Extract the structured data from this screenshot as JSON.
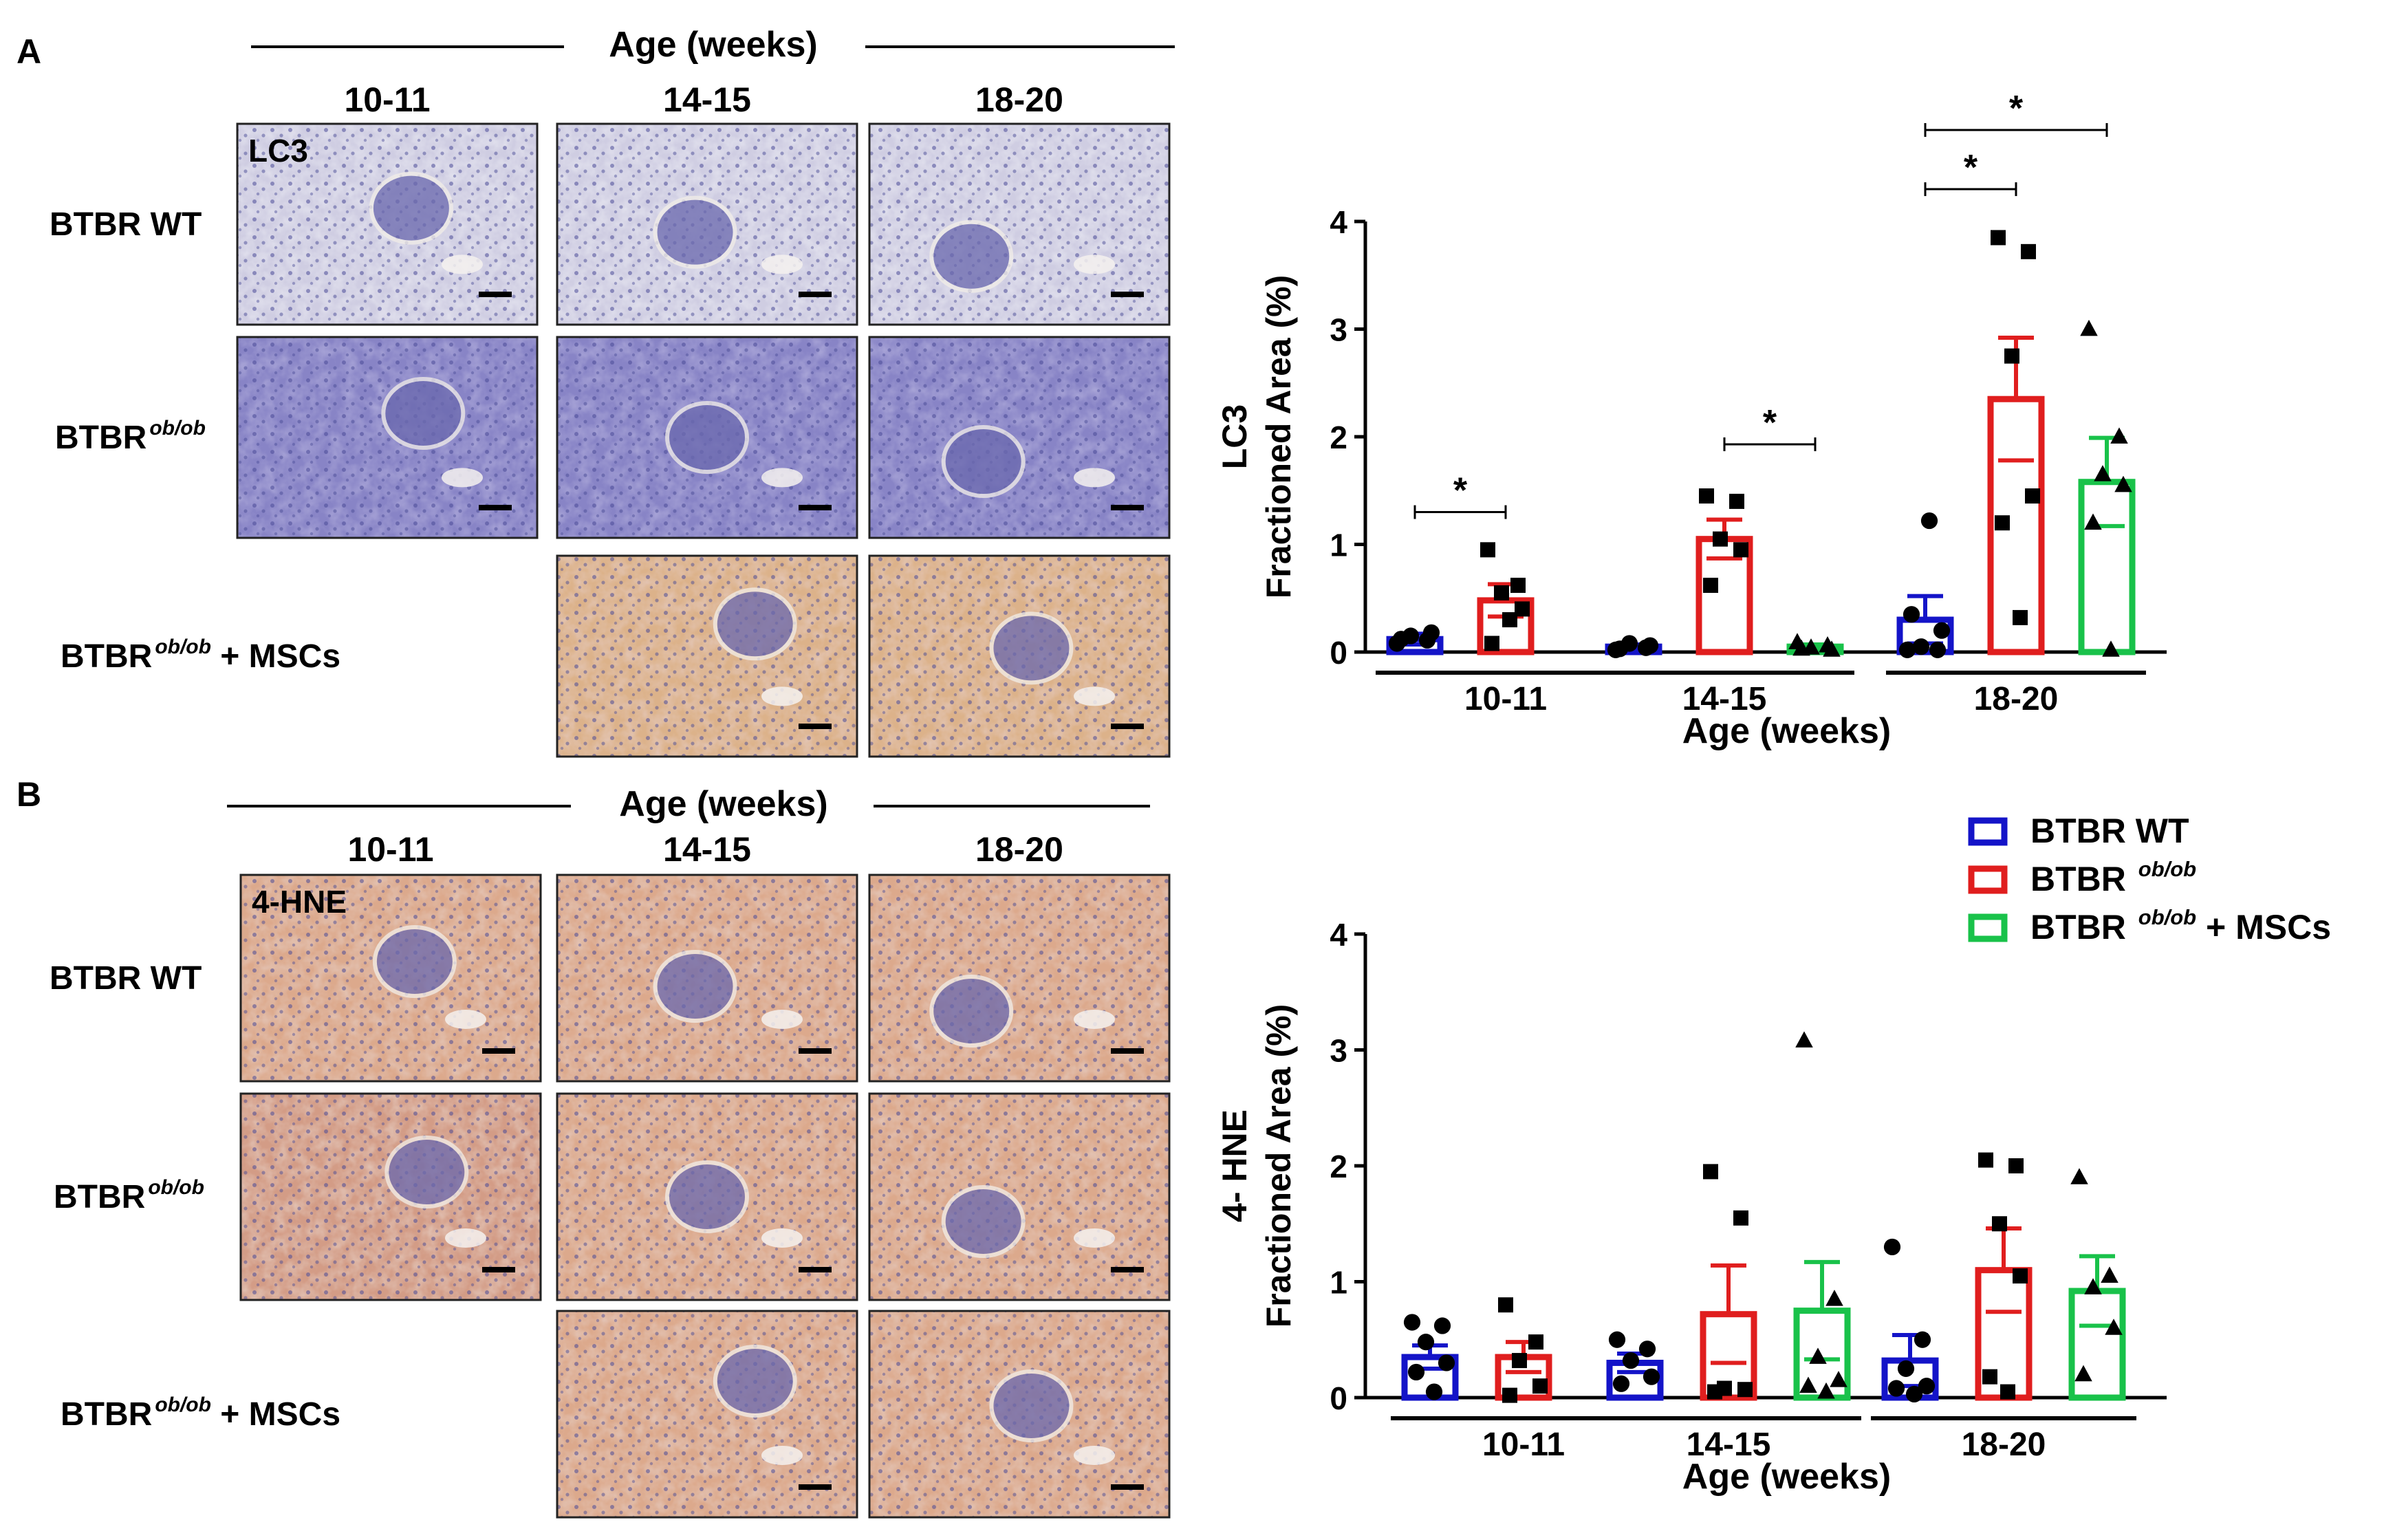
{
  "figure": {
    "panel_A": {
      "letter": "A",
      "header_title": "Age (weeks)",
      "age_groups": [
        "10-11",
        "14-15",
        "18-20"
      ],
      "stain_label": "LC3",
      "row_labels": [
        {
          "base": "BTBR WT",
          "sup": "",
          "suffix": ""
        },
        {
          "base": "BTBR",
          "sup": "ob/ob",
          "suffix": ""
        },
        {
          "base": "BTBR",
          "sup": "ob/ob",
          "suffix": " + MSCs"
        }
      ],
      "tiles": [
        [
          "lc3-wt-10",
          "lc3-wt-14",
          "lc3-wt-18"
        ],
        [
          "lc3-ob-10",
          "lc3-ob-14",
          "lc3-ob-18"
        ],
        [
          null,
          "lc3-msc-14",
          "lc3-msc-18"
        ]
      ]
    },
    "panel_B": {
      "letter": "B",
      "header_title": "Age (weeks)",
      "age_groups": [
        "10-11",
        "14-15",
        "18-20"
      ],
      "stain_label": "4-HNE",
      "row_labels": [
        {
          "base": "BTBR WT",
          "sup": "",
          "suffix": ""
        },
        {
          "base": "BTBR",
          "sup": "ob/ob",
          "suffix": ""
        },
        {
          "base": "BTBR",
          "sup": "ob/ob",
          "suffix": " + MSCs"
        }
      ],
      "tiles": [
        [
          "hne-wt-10",
          "hne-wt-14",
          "hne-wt-18"
        ],
        [
          "hne-ob-10",
          "hne-ob-14",
          "hne-ob-18"
        ],
        [
          null,
          "hne-msc-14",
          "hne-msc-18"
        ]
      ]
    },
    "legend": [
      {
        "base": "BTBR WT",
        "sup": "",
        "suffix": "",
        "color": "#1414c8"
      },
      {
        "base": "BTBR ",
        "sup": "ob/ob",
        "suffix": "",
        "color": "#e01e1e"
      },
      {
        "base": "BTBR ",
        "sup": "ob/ob",
        "suffix": " + MSCs",
        "color": "#19c24a"
      }
    ],
    "stain_colors": {
      "wt_pale": "#cbc9dd",
      "ob_blue": "#8a86c4",
      "msc_tan": "#d7ae86",
      "hne_peach": "#d9a88c",
      "nuclei": "#4a4b96"
    }
  },
  "chart_data": [
    {
      "type": "bar",
      "title": "",
      "ylabel_line1": "LC3",
      "ylabel_line2": "Fractioned Area (%)",
      "xlabel": "Age (weeks)",
      "ylim": [
        0,
        4
      ],
      "yticks": [
        "0",
        "1",
        "2",
        "3",
        "4"
      ],
      "categories": [
        "10-11",
        "14-15",
        "18-20"
      ],
      "series": [
        {
          "name": "BTBR WT",
          "color": "#1414c8",
          "marker": "circle",
          "values": [
            0.12,
            0.05,
            0.3
          ],
          "sem": [
            0.05,
            0.02,
            0.22
          ],
          "points": [
            [
              0.08,
              0.11,
              0.15,
              0.18,
              0.12
            ],
            [
              0.02,
              0.04,
              0.08,
              0.06,
              0.03
            ],
            [
              0.02,
              0.02,
              0.05,
              0.2,
              0.35,
              1.22
            ]
          ]
        },
        {
          "name": "BTBR ob/ob",
          "color": "#e01e1e",
          "marker": "square",
          "values": [
            0.48,
            1.05,
            2.35
          ],
          "sem": [
            0.15,
            0.18,
            0.57
          ],
          "points": [
            [
              0.95,
              0.62,
              0.55,
              0.4,
              0.08,
              0.3
            ],
            [
              1.45,
              1.4,
              1.05,
              0.95,
              0.62
            ],
            [
              3.85,
              3.72,
              2.75,
              1.45,
              1.2,
              0.32
            ]
          ]
        },
        {
          "name": "BTBR ob/ob + MSCs",
          "color": "#19c24a",
          "marker": "triangle",
          "values": [
            null,
            0.05,
            1.58
          ],
          "sem": [
            null,
            0.02,
            0.41
          ],
          "points": [
            [],
            [
              0.09,
              0.06,
              0.04,
              0.02,
              0.03
            ],
            [
              3.0,
              2.0,
              1.65,
              1.55,
              1.2,
              0.02
            ]
          ]
        }
      ],
      "significance": [
        {
          "label": "*",
          "group": 0,
          "from": 0,
          "to": 1,
          "y": 1.3
        },
        {
          "label": "*",
          "group": 1,
          "from": 1,
          "to": 2,
          "y": 1.93
        },
        {
          "label": "*",
          "group": 2,
          "from": 0,
          "to": 1,
          "y": 4.3
        },
        {
          "label": "*",
          "group": 2,
          "from": 0,
          "to": 2,
          "y": 4.85
        }
      ]
    },
    {
      "type": "bar",
      "title": "",
      "ylabel_line1": "4- HNE",
      "ylabel_line2": "Fractioned Area (%)",
      "xlabel": "Age (weeks)",
      "ylim": [
        0,
        4
      ],
      "yticks": [
        "0",
        "1",
        "2",
        "3",
        "4"
      ],
      "categories": [
        "10-11",
        "14-15",
        "18-20"
      ],
      "series": [
        {
          "name": "BTBR WT",
          "color": "#1414c8",
          "marker": "circle",
          "values": [
            0.35,
            0.3,
            0.32
          ],
          "sem": [
            0.1,
            0.08,
            0.22
          ],
          "points": [
            [
              0.65,
              0.62,
              0.48,
              0.3,
              0.22,
              0.05
            ],
            [
              0.5,
              0.42,
              0.32,
              0.18,
              0.12
            ],
            [
              1.3,
              0.5,
              0.25,
              0.1,
              0.08,
              0.03
            ]
          ]
        },
        {
          "name": "BTBR ob/ob",
          "color": "#e01e1e",
          "marker": "square",
          "values": [
            0.35,
            0.72,
            1.1
          ],
          "sem": [
            0.13,
            0.42,
            0.36
          ],
          "points": [
            [
              0.8,
              0.48,
              0.32,
              0.1,
              0.02
            ],
            [
              1.95,
              1.55,
              0.08,
              0.07,
              0.05
            ],
            [
              2.05,
              2.0,
              1.5,
              1.05,
              0.18,
              0.05
            ]
          ]
        },
        {
          "name": "BTBR ob/ob + MSCs",
          "color": "#19c24a",
          "marker": "triangle",
          "values": [
            null,
            0.75,
            0.92
          ],
          "sem": [
            null,
            0.42,
            0.3
          ],
          "points": [
            [],
            [
              3.08,
              0.85,
              0.35,
              0.15,
              0.1,
              0.05
            ],
            [
              1.9,
              1.05,
              0.95,
              0.6,
              0.2
            ]
          ]
        }
      ],
      "significance": []
    }
  ]
}
